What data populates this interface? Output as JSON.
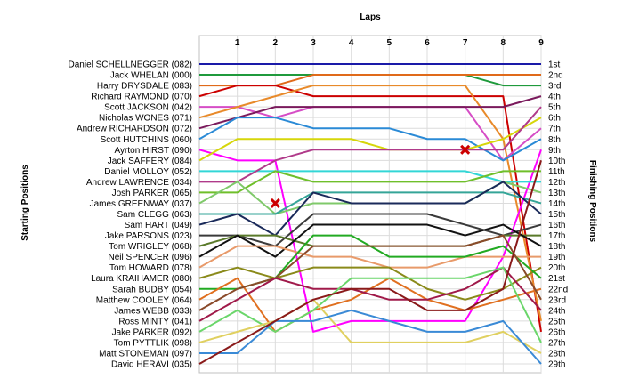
{
  "chart_data": {
    "type": "line",
    "title": "Laps",
    "xlabel": "Laps",
    "ylabel_left": "Starting Positions",
    "ylabel_right": "Finishing Positions",
    "laps": [
      1,
      2,
      3,
      4,
      5,
      6,
      7,
      8,
      9
    ],
    "xlim": [
      0,
      9
    ],
    "ylim": [
      1,
      29
    ],
    "grid": true,
    "starting_order": [
      "Daniel SCHELLNEGGER (082)",
      "Jack WHELAN (000)",
      "Harry DRYSDALE (083)",
      "Richard RAYMOND (070)",
      "Scott JACKSON (042)",
      "Nicholas WONES (071)",
      "Andrew RICHARDSON (072)",
      "Scott HUTCHINS (060)",
      "Ayrton HIRST (090)",
      "Jack SAFFERY (084)",
      "Daniel MOLLOY (052)",
      "Andrew LAWRENCE (034)",
      "Josh PARKER (065)",
      "James GREENWAY (037)",
      "Sam CLEGG (063)",
      "Sam HART (049)",
      "Jake PARSONS (023)",
      "Tom WRIGLEY (068)",
      "Neil SPENCER (096)",
      "Tom HOWARD (078)",
      "Laura KRAIHAMER (080)",
      "Sarah BUDBY (054)",
      "Matthew COOLEY (064)",
      "James WEBB (033)",
      "Ross MINTY (041)",
      "Jake PARKER (092)",
      "Tom PYTTLIK (098)",
      "Matt STONEMAN (097)",
      "David HERAVI (035)"
    ],
    "finishing_positions": [
      "1st",
      "2nd",
      "3rd",
      "4th",
      "5th",
      "6th",
      "7th",
      "8th",
      "9th",
      "10th",
      "11th",
      "12th",
      "13th",
      "14th",
      "15th",
      "16th",
      "17th",
      "18th",
      "19th",
      "20th",
      "21st",
      "22nd",
      "23rd",
      "24th",
      "25th",
      "26th",
      "27th",
      "28th",
      "29th"
    ],
    "series": [
      {
        "color": "#1a1aa8",
        "values": [
          1,
          1,
          1,
          1,
          1,
          1,
          1,
          1,
          1,
          1
        ]
      },
      {
        "color": "#1f9a3c",
        "values": [
          2,
          2,
          2,
          2,
          2,
          2,
          2,
          2,
          3,
          3
        ]
      },
      {
        "color": "#e06a1a",
        "values": [
          3,
          3,
          3,
          2,
          2,
          2,
          2,
          2,
          2,
          2
        ]
      },
      {
        "color": "#cc0000",
        "values": [
          4,
          3,
          3,
          4,
          4,
          4,
          4,
          4,
          4,
          26
        ]
      },
      {
        "color": "#d64dc6",
        "values": [
          5,
          5,
          6,
          5,
          5,
          5,
          5,
          5,
          10,
          7
        ]
      },
      {
        "color": "#e88a2a",
        "values": [
          6,
          5,
          4,
          3,
          3,
          3,
          3,
          3,
          8,
          25
        ]
      },
      {
        "color": "#7a1a5c",
        "values": [
          7,
          6,
          5,
          5,
          5,
          5,
          5,
          5,
          5,
          4
        ]
      },
      {
        "color": "#2a8ad6",
        "values": [
          8,
          6,
          6,
          7,
          7,
          7,
          8,
          8,
          10,
          8
        ]
      },
      {
        "color": "#ff00ff",
        "values": [
          9,
          10,
          10,
          26,
          25,
          25,
          25,
          25,
          19,
          9
        ]
      },
      {
        "color": "#d6d60a",
        "values": [
          10,
          8,
          8,
          8,
          8,
          9,
          9,
          9,
          8,
          6
        ]
      },
      {
        "color": "#33d6d6",
        "values": [
          11,
          11,
          11,
          11,
          11,
          11,
          11,
          11,
          12,
          12
        ]
      },
      {
        "color": "#b03a8a",
        "values": [
          12,
          12,
          10,
          9,
          9,
          9,
          9,
          9,
          9,
          5
        ]
      },
      {
        "color": "#6fbf2a",
        "values": [
          13,
          13,
          11,
          12,
          12,
          12,
          12,
          12,
          11,
          11
        ]
      },
      {
        "color": "#7fc96a",
        "values": [
          14,
          12,
          15,
          14,
          14,
          14,
          14,
          14,
          12,
          13
        ]
      },
      {
        "color": "#35a598",
        "values": [
          15,
          15,
          15,
          13,
          13,
          13,
          13,
          13,
          13,
          14
        ]
      },
      {
        "color": "#1a2a5a",
        "values": [
          16,
          15,
          17,
          13,
          14,
          14,
          14,
          14,
          12,
          15
        ]
      },
      {
        "color": "#3a3a3a",
        "values": [
          17,
          17,
          18,
          15,
          15,
          15,
          15,
          16,
          17,
          16
        ]
      },
      {
        "color": "#5a7a2a",
        "values": [
          18,
          17,
          17,
          18,
          18,
          18,
          18,
          18,
          17,
          17
        ]
      },
      {
        "color": "#111111",
        "values": [
          19,
          17,
          19,
          16,
          16,
          16,
          16,
          17,
          16,
          18
        ]
      },
      {
        "color": "#e89a6a",
        "values": [
          20,
          18,
          18,
          19,
          19,
          20,
          20,
          19,
          19,
          19
        ]
      },
      {
        "color": "#8a8a1a",
        "values": [
          21,
          20,
          21,
          20,
          20,
          20,
          22,
          23,
          22,
          20
        ]
      },
      {
        "color": "#22aa22",
        "values": [
          22,
          22,
          21,
          17,
          17,
          19,
          19,
          19,
          18,
          21
        ]
      },
      {
        "color": "#e07020",
        "values": [
          23,
          21,
          26,
          24,
          23,
          21,
          23,
          24,
          23,
          22
        ]
      },
      {
        "color": "#8a4a2a",
        "values": [
          24,
          22,
          21,
          18,
          18,
          18,
          18,
          18,
          17,
          23
        ]
      },
      {
        "color": "#a01a4a",
        "values": [
          25,
          23,
          21,
          22,
          22,
          23,
          23,
          22,
          20,
          24
        ]
      },
      {
        "color": "#6ad66a",
        "values": [
          26,
          24,
          26,
          24,
          21,
          21,
          21,
          21,
          20,
          27
        ]
      },
      {
        "color": "#e0d060",
        "values": [
          27,
          26,
          25,
          23,
          27,
          27,
          27,
          27,
          26,
          28
        ]
      },
      {
        "color": "#3a8ad6",
        "values": [
          28,
          28,
          25,
          25,
          24,
          25,
          26,
          26,
          25,
          29
        ]
      },
      {
        "color": "#8a1a1a",
        "values": [
          29,
          27,
          25,
          23,
          22,
          22,
          24,
          24,
          22,
          10
        ]
      }
    ],
    "markers": [
      {
        "shape": "x",
        "color": "#cc0000",
        "lap": 2,
        "position": 14
      },
      {
        "shape": "x",
        "color": "#cc0000",
        "lap": 7,
        "position": 9
      }
    ]
  }
}
